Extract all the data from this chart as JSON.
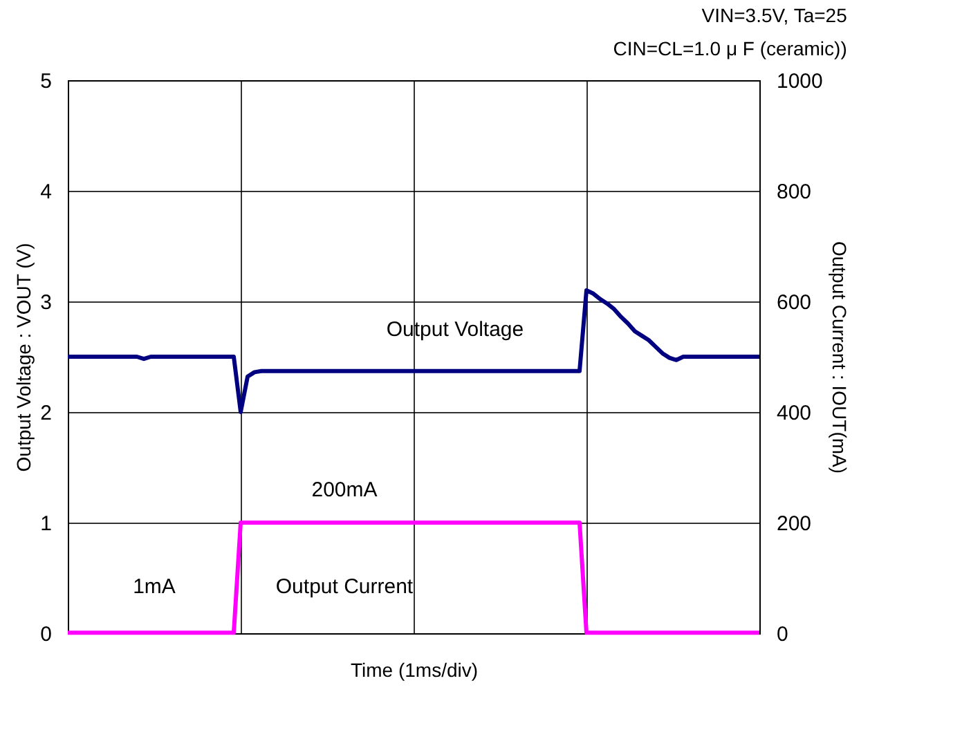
{
  "chart_data": {
    "type": "line",
    "xlabel": "Time (1ms/div)",
    "ylabel": "Output Voltage : VOUT (V)",
    "y2label": "Output Current : IOUT(mA)",
    "annotations": [
      "VIN=3.5V,  Ta=25",
      "CIN=CL=1.0 μ F (ceramic))",
      "Output Voltage",
      "200mA",
      "1mA",
      "Output Current"
    ],
    "categories": [
      null,
      null,
      null,
      null,
      null,
      null,
      null,
      null,
      null,
      null,
      null,
      null,
      null,
      null,
      null,
      null,
      null,
      null,
      null,
      null,
      null,
      null,
      null,
      null,
      null,
      null,
      null,
      null,
      null,
      null,
      null,
      null,
      null,
      null,
      null,
      null,
      null,
      null,
      null,
      null,
      null,
      null,
      null,
      null,
      null,
      null,
      null,
      null,
      null,
      null,
      null,
      null,
      null,
      null,
      null,
      null,
      null,
      null,
      null,
      null,
      null,
      null,
      null,
      null,
      null,
      null,
      null,
      null,
      null,
      null,
      null,
      null,
      null,
      null,
      null,
      null,
      null,
      null,
      null,
      null,
      null,
      null,
      null,
      null,
      null,
      null,
      null,
      null,
      null,
      null,
      null,
      null,
      null,
      null,
      null,
      null,
      null,
      null,
      null,
      null,
      null
    ],
    "ylim": [
      0,
      5
    ],
    "yticks": [
      0,
      1,
      2,
      3,
      4,
      5
    ],
    "y2lim": [
      0,
      1000
    ],
    "y2ticks": [
      0,
      200,
      400,
      600,
      800,
      1000
    ],
    "tick_labels": "y",
    "grid": true,
    "marker": "none",
    "line_style": "solid",
    "series": [
      {
        "color": "#000080",
        "values": [
          2.5,
          2.5,
          2.5,
          2.5,
          2.5,
          2.5,
          2.5,
          2.5,
          2.5,
          2.5,
          2.5,
          2.48,
          2.5,
          2.5,
          2.5,
          2.5,
          2.5,
          2.5,
          2.5,
          2.5,
          2.5,
          2.5,
          2.5,
          2.5,
          2.5,
          2.0,
          2.32,
          2.36,
          2.37,
          2.37,
          2.37,
          2.37,
          2.37,
          2.37,
          2.37,
          2.37,
          2.37,
          2.37,
          2.37,
          2.37,
          2.37,
          2.37,
          2.37,
          2.37,
          2.37,
          2.37,
          2.37,
          2.37,
          2.37,
          2.37,
          2.37,
          2.37,
          2.37,
          2.37,
          2.37,
          2.37,
          2.37,
          2.37,
          2.37,
          2.37,
          2.37,
          2.37,
          2.37,
          2.37,
          2.37,
          2.37,
          2.37,
          2.37,
          2.37,
          2.37,
          2.37,
          2.37,
          2.37,
          2.37,
          2.37,
          3.1,
          3.07,
          3.02,
          2.98,
          2.93,
          2.86,
          2.8,
          2.73,
          2.69,
          2.65,
          2.59,
          2.53,
          2.49,
          2.47,
          2.5,
          2.5,
          2.5,
          2.5,
          2.5,
          2.5,
          2.5,
          2.5,
          2.5,
          2.5,
          2.5,
          2.5
        ]
      },
      {
        "color": "#ff00ff",
        "axis": "y2",
        "values": [
          1,
          1,
          1,
          1,
          1,
          1,
          1,
          1,
          1,
          1,
          1,
          1,
          1,
          1,
          1,
          1,
          1,
          1,
          1,
          1,
          1,
          1,
          1,
          1,
          1,
          200,
          200,
          200,
          200,
          200,
          200,
          200,
          200,
          200,
          200,
          200,
          200,
          200,
          200,
          200,
          200,
          200,
          200,
          200,
          200,
          200,
          200,
          200,
          200,
          200,
          200,
          200,
          200,
          200,
          200,
          200,
          200,
          200,
          200,
          200,
          200,
          200,
          200,
          200,
          200,
          200,
          200,
          200,
          200,
          200,
          200,
          200,
          200,
          200,
          200,
          1,
          1,
          1,
          1,
          1,
          1,
          1,
          1,
          1,
          1,
          1,
          1,
          1,
          1,
          1,
          1,
          1,
          1,
          1,
          1,
          1,
          1,
          1,
          1,
          1,
          1
        ]
      }
    ]
  }
}
